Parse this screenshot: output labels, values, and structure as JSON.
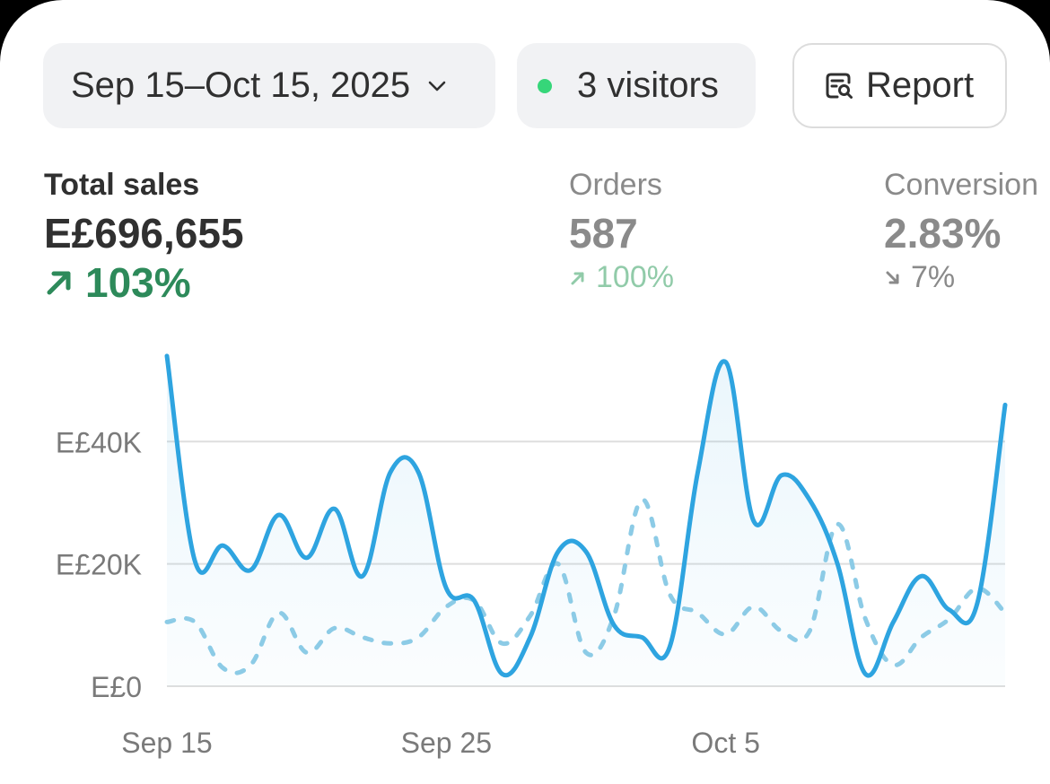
{
  "filters": {
    "date_range": "Sep 15–Oct 15, 2025",
    "visitors": "3 visitors",
    "report_label": "Report"
  },
  "metrics": {
    "total_sales": {
      "label": "Total sales",
      "value": "E£696,655",
      "change": "103%",
      "direction": "up"
    },
    "orders": {
      "label": "Orders",
      "value": "587",
      "change": "100%",
      "direction": "up"
    },
    "conversion": {
      "label": "Conversion",
      "value": "2.83%",
      "change": "7%",
      "direction": "down"
    }
  },
  "colors": {
    "current": "#2ea4e0",
    "comparison": "#8ccbe6",
    "positive": "#2d8a5a",
    "live_dot": "#36d679"
  },
  "chart_data": {
    "type": "line",
    "x": [
      "Sep 15",
      "Sep 16",
      "Sep 17",
      "Sep 18",
      "Sep 19",
      "Sep 20",
      "Sep 21",
      "Sep 22",
      "Sep 23",
      "Sep 24",
      "Sep 25",
      "Sep 26",
      "Sep 27",
      "Sep 28",
      "Sep 29",
      "Sep 30",
      "Oct 1",
      "Oct 2",
      "Oct 3",
      "Oct 4",
      "Oct 5",
      "Oct 6",
      "Oct 7",
      "Oct 8",
      "Oct 9",
      "Oct 10",
      "Oct 11",
      "Oct 12",
      "Oct 13",
      "Oct 14",
      "Oct 15"
    ],
    "xticks": [
      "Sep 15",
      "Sep 25",
      "Oct 5"
    ],
    "yticks": [
      0,
      20000,
      40000
    ],
    "ytick_labels": [
      "E£0",
      "E£20K",
      "E£40K"
    ],
    "ylim": [
      0,
      55000
    ],
    "grid": true,
    "series": [
      {
        "style": "solid",
        "values": [
          54000,
          20500,
          23000,
          19000,
          28000,
          21000,
          29000,
          18000,
          35000,
          35000,
          16000,
          14000,
          2000,
          8000,
          22000,
          22000,
          10000,
          8000,
          6500,
          35000,
          53000,
          27000,
          34500,
          30500,
          20000,
          2000,
          10500,
          18000,
          12500,
          13500,
          46000
        ]
      },
      {
        "style": "dashed",
        "values": [
          10500,
          10500,
          3000,
          3500,
          12000,
          5500,
          9500,
          8000,
          7000,
          8000,
          13000,
          14000,
          7000,
          11500,
          20000,
          5500,
          11500,
          30500,
          15000,
          12000,
          8500,
          13000,
          9000,
          9000,
          26500,
          11000,
          3500,
          8000,
          11000,
          16000,
          12000
        ]
      }
    ]
  }
}
